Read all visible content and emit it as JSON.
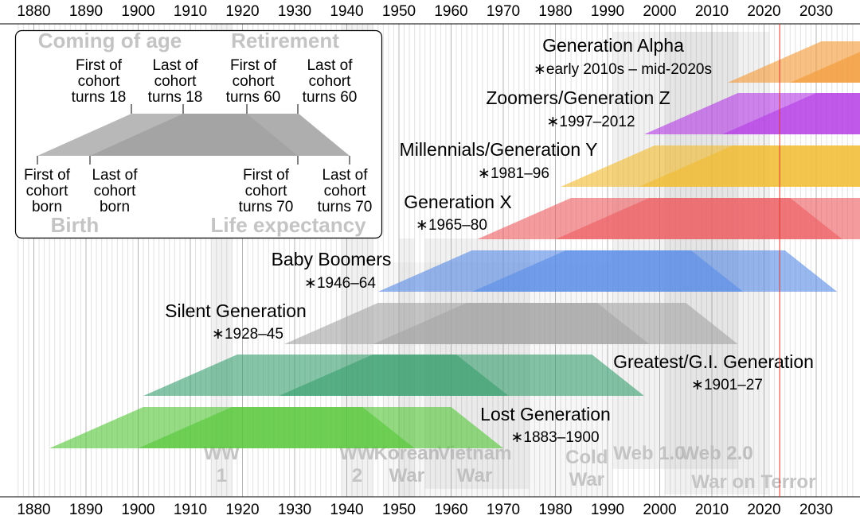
{
  "chart_data": {
    "type": "timeline",
    "x_range": [
      1877,
      2037
    ],
    "ticks": [
      1880,
      1890,
      1900,
      1910,
      1920,
      1930,
      1940,
      1950,
      1960,
      1970,
      1980,
      1990,
      2000,
      2010,
      2020,
      2030
    ],
    "current_year_marker": 2023,
    "generations": [
      {
        "name": "Lost Generation",
        "years_text": "∗1883–1900",
        "birth_start": 1883,
        "birth_end": 1900,
        "color": "#55c739"
      },
      {
        "name": "Greatest/G.I. Generation",
        "years_text": "∗1901–27",
        "birth_start": 1901,
        "birth_end": 1927,
        "color": "#3aa06f"
      },
      {
        "name": "Silent Generation",
        "years_text": "∗1928–45",
        "birth_start": 1928,
        "birth_end": 1945,
        "color": "#a4a4a4"
      },
      {
        "name": "Baby Boomers",
        "years_text": "∗1946–64",
        "birth_start": 1946,
        "birth_end": 1964,
        "color": "#5b8de7"
      },
      {
        "name": "Generation X",
        "years_text": "∗1965–80",
        "birth_start": 1965,
        "birth_end": 1980,
        "color": "#ee5e62"
      },
      {
        "name": "Millennials/Generation Y",
        "years_text": "∗1981–96",
        "birth_start": 1981,
        "birth_end": 1996,
        "color": "#f2bc2e"
      },
      {
        "name": "Zoomers/Generation Z",
        "years_text": "∗1997–2012",
        "birth_start": 1997,
        "birth_end": 2012,
        "color": "#b53ce6"
      },
      {
        "name": "Generation Alpha",
        "years_text": "∗early 2010s – mid-2020s",
        "birth_start": 2013,
        "birth_end": 2025,
        "color": "#f49a35"
      }
    ],
    "events": [
      {
        "lines": [
          "WW",
          "1"
        ],
        "start": 1914,
        "end": 1918
      },
      {
        "lines": [
          "WW",
          "2"
        ],
        "start": 1939,
        "end": 1945
      },
      {
        "lines": [
          "Korean",
          "War"
        ],
        "start": 1950,
        "end": 1953
      },
      {
        "lines": [
          "Vietnam",
          "War"
        ],
        "start": 1955,
        "end": 1975
      },
      {
        "lines": [
          "Cold",
          "War"
        ],
        "start": 1947,
        "end": 1991
      },
      {
        "lines": [
          "Web 1.0"
        ],
        "start": 1991,
        "end": 2004
      },
      {
        "lines": [
          "Web 2.0"
        ],
        "start": 2004,
        "end": 2015
      },
      {
        "lines": [
          "War on Terror"
        ],
        "start": 2001,
        "end": 2021
      }
    ],
    "legend": {
      "top_left": "Coming of age",
      "top_right": "Retirement",
      "bottom_left": "Birth",
      "bottom_right": "Life expectancy",
      "labels": {
        "first_18": [
          "First of",
          "cohort",
          "turns 18"
        ],
        "last_18": [
          "Last of",
          "cohort",
          "turns 18"
        ],
        "first_60": [
          "First of",
          "cohort",
          "turns 60"
        ],
        "last_60": [
          "Last of",
          "cohort",
          "turns 60"
        ],
        "first_born": [
          "First of",
          "cohort",
          "born"
        ],
        "last_born": [
          "Last of",
          "cohort",
          "born"
        ],
        "first_70": [
          "First of",
          "cohort",
          "turns 70"
        ],
        "last_70": [
          "Last of",
          "cohort",
          "turns 70"
        ]
      }
    }
  }
}
